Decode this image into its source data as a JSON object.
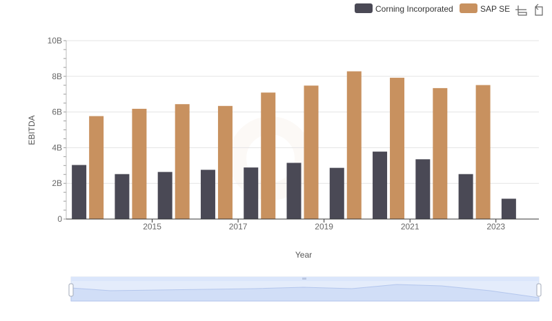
{
  "chart_data": {
    "type": "bar",
    "categories": [
      "2014",
      "2015",
      "2016",
      "2017",
      "2018",
      "2019",
      "2020",
      "2021",
      "2022",
      "2023",
      "2024"
    ],
    "series": [
      {
        "name": "Corning Incorporated",
        "color": "#4a4955",
        "values": [
          3.03,
          2.52,
          2.64,
          2.76,
          2.89,
          3.15,
          2.87,
          3.78,
          3.35,
          2.52,
          1.14
        ]
      },
      {
        "name": "SAP SE",
        "color": "#c8915f",
        "values": [
          5.77,
          6.18,
          6.44,
          6.34,
          7.09,
          7.48,
          8.28,
          7.92,
          7.34,
          7.51,
          null
        ]
      }
    ],
    "xlabel": "Year",
    "ylabel": "EBITDA",
    "ylim": [
      0,
      10
    ],
    "y_ticks": [
      "0",
      "2B",
      "4B",
      "6B",
      "8B",
      "10B"
    ],
    "x_tick_labels": [
      "2015",
      "2017",
      "2019",
      "2021",
      "2023"
    ],
    "grid": true,
    "legend_position": "top-right"
  },
  "toolbox": {
    "icons": [
      "zoom-icon",
      "zoom-reset-icon"
    ]
  },
  "datazoom": {
    "start_percent": 0,
    "end_percent": 100,
    "handle_color": "#dbe6fb"
  }
}
